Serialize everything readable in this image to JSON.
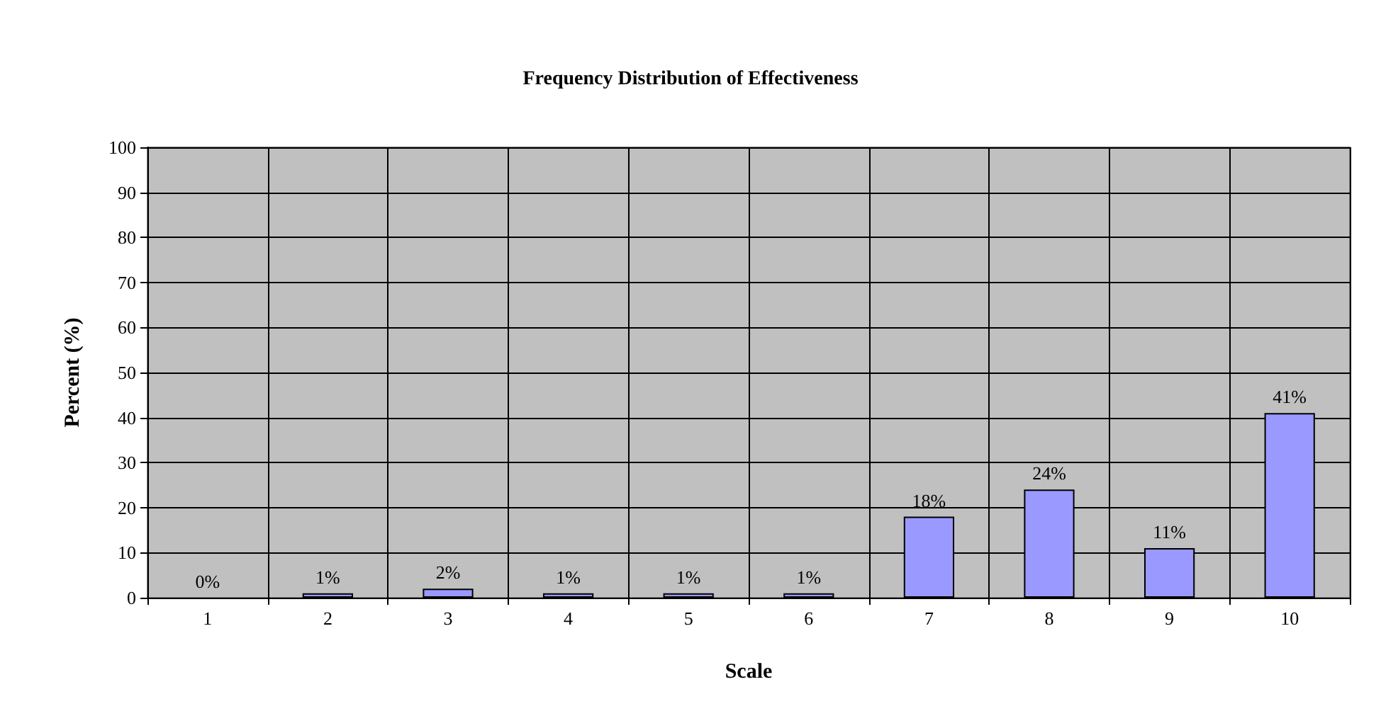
{
  "chart_data": {
    "type": "bar",
    "title": "Frequency Distribution of Effectiveness",
    "xlabel": "Scale",
    "ylabel": "Percent (%)",
    "categories": [
      "1",
      "2",
      "3",
      "4",
      "5",
      "6",
      "7",
      "8",
      "9",
      "10"
    ],
    "values": [
      0,
      1,
      2,
      1,
      1,
      1,
      18,
      24,
      11,
      41
    ],
    "value_labels": [
      "0%",
      "1%",
      "2%",
      "1%",
      "1%",
      "1%",
      "18%",
      "24%",
      "11%",
      "41%"
    ],
    "color": "#9999ff",
    "ylim": [
      0,
      100
    ],
    "yticks": [
      0,
      10,
      20,
      30,
      40,
      50,
      60,
      70,
      80,
      90,
      100
    ],
    "grid": true
  }
}
